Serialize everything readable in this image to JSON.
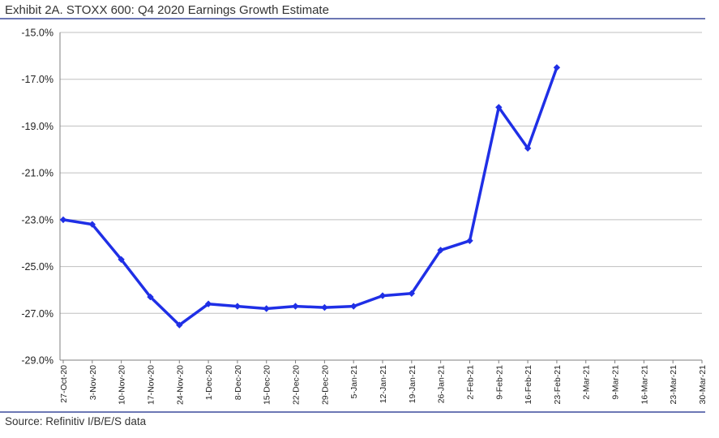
{
  "title": "Exhibit 2A.  STOXX 600: Q4 2020 Earnings Growth Estimate",
  "source": "Source: Refinitiv I/B/E/S data",
  "colors": {
    "series": "#1f2fe6",
    "rule": "#3b4a9c",
    "grid": "#bfbfbf",
    "axis": "#7f7f7f"
  },
  "chart_data": {
    "type": "line",
    "title": "Exhibit 2A.  STOXX 600: Q4 2020 Earnings Growth Estimate",
    "xlabel": "",
    "ylabel": "",
    "ylim": [
      -29,
      -15
    ],
    "yticks": [
      -15,
      -17,
      -19,
      -21,
      -23,
      -25,
      -27,
      -29
    ],
    "ytick_labels": [
      "-15.0%",
      "-17.0%",
      "-19.0%",
      "-21.0%",
      "-23.0%",
      "-25.0%",
      "-27.0%",
      "-29.0%"
    ],
    "categories": [
      "27-Oct-20",
      "3-Nov-20",
      "10-Nov-20",
      "17-Nov-20",
      "24-Nov-20",
      "1-Dec-20",
      "8-Dec-20",
      "15-Dec-20",
      "22-Dec-20",
      "29-Dec-20",
      "5-Jan-21",
      "12-Jan-21",
      "19-Jan-21",
      "26-Jan-21",
      "2-Feb-21",
      "9-Feb-21",
      "16-Feb-21",
      "23-Feb-21",
      "2-Mar-21",
      "9-Mar-21",
      "16-Mar-21",
      "23-Mar-21",
      "30-Mar-21"
    ],
    "grid": true,
    "legend": "none",
    "series": [
      {
        "values": [
          -23.0,
          -23.2,
          -24.7,
          -26.3,
          -27.5,
          -26.6,
          -26.7,
          -26.8,
          -26.7,
          -26.75,
          -26.7,
          -26.25,
          -26.15,
          -24.3,
          -23.9,
          -18.2,
          -19.95,
          -16.5,
          null,
          null,
          null,
          null,
          null
        ]
      }
    ]
  }
}
